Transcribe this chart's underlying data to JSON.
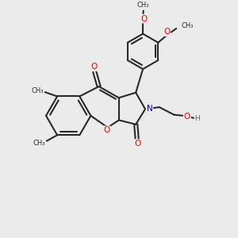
{
  "background_color": "#ebebeb",
  "bond_color": "#2a2a2a",
  "bond_width": 1.5,
  "atom_colors": {
    "O": "#ff0000",
    "N": "#0000cc",
    "C": "#2a2a2a"
  },
  "font_size_atom": 7.5,
  "font_size_me": 6.5,
  "figsize": [
    3.0,
    3.0
  ],
  "dpi": 100,
  "xlim": [
    0,
    10
  ],
  "ylim": [
    0,
    10
  ]
}
